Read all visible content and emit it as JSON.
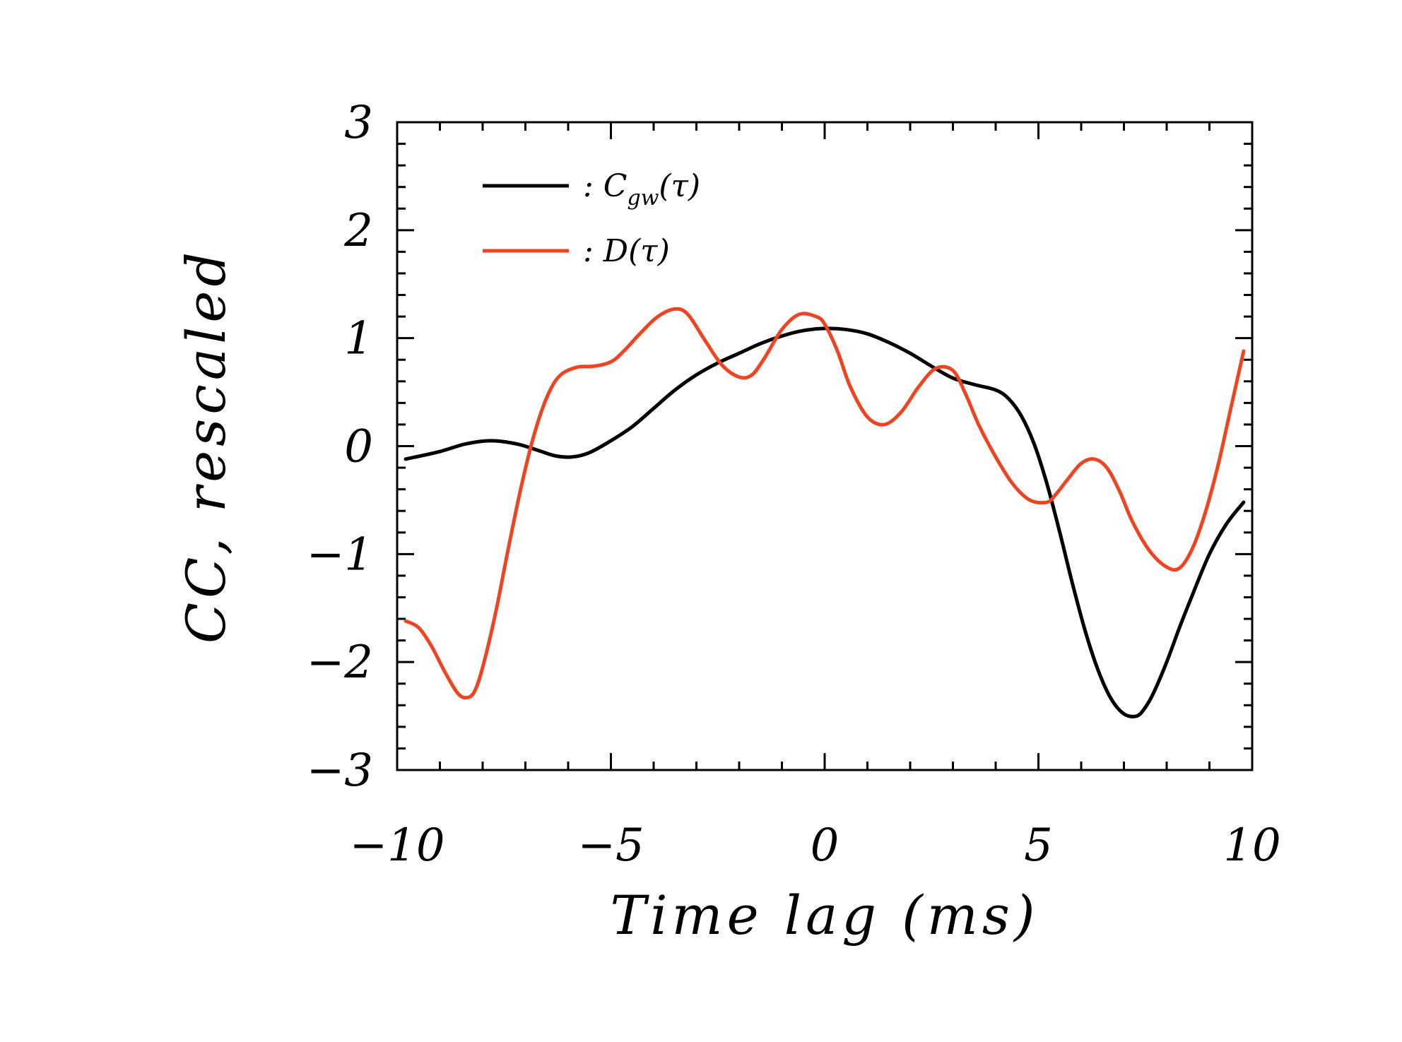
{
  "chart_data": {
    "type": "line",
    "title": "",
    "xlabel": "Time lag (ms)",
    "ylabel": "CC, rescaled",
    "xlim": [
      -10,
      10
    ],
    "ylim": [
      -3,
      3
    ],
    "x_ticks": [
      -10,
      -5,
      0,
      5,
      10
    ],
    "x_tick_labels": [
      "−10",
      "−5",
      "0",
      "5",
      "10"
    ],
    "y_ticks": [
      -3,
      -2,
      -1,
      0,
      1,
      2,
      3
    ],
    "y_tick_labels": [
      "−3",
      "−2",
      "−1",
      "0",
      "1",
      "2",
      "3"
    ],
    "x_minor_step": 1,
    "y_minor_step": 0.2,
    "legend": "top-left",
    "series": [
      {
        "name": "Cgw(τ)",
        "legend_label": ":  C",
        "legend_sub": "gw",
        "legend_tail": "(τ)",
        "color": "#000000",
        "x": [
          -9.8,
          -9.0,
          -8.4,
          -7.8,
          -7.2,
          -6.7,
          -6.3,
          -5.9,
          -5.5,
          -5.0,
          -4.5,
          -4.0,
          -3.5,
          -3.0,
          -2.5,
          -2.0,
          -1.5,
          -1.0,
          -0.5,
          0.0,
          0.5,
          1.0,
          1.5,
          2.0,
          2.5,
          3.0,
          3.5,
          4.0,
          4.3,
          4.6,
          4.9,
          5.2,
          5.5,
          5.8,
          6.1,
          6.4,
          6.7,
          7.0,
          7.3,
          7.5,
          7.7,
          8.0,
          8.3,
          8.6,
          9.0,
          9.4,
          9.8
        ],
        "y": [
          -0.12,
          -0.05,
          0.02,
          0.05,
          0.02,
          -0.04,
          -0.09,
          -0.1,
          -0.06,
          0.05,
          0.18,
          0.35,
          0.52,
          0.66,
          0.77,
          0.86,
          0.95,
          1.02,
          1.07,
          1.09,
          1.08,
          1.04,
          0.96,
          0.86,
          0.74,
          0.63,
          0.57,
          0.52,
          0.44,
          0.28,
          0.02,
          -0.35,
          -0.8,
          -1.28,
          -1.72,
          -2.08,
          -2.34,
          -2.48,
          -2.5,
          -2.42,
          -2.28,
          -2.0,
          -1.68,
          -1.38,
          -1.0,
          -0.72,
          -0.52
        ]
      },
      {
        "name": "D(τ)",
        "legend_label": ":  D(τ)",
        "color": "#ee4422",
        "x": [
          -9.8,
          -9.5,
          -9.2,
          -8.9,
          -8.6,
          -8.4,
          -8.2,
          -8.0,
          -7.7,
          -7.4,
          -7.1,
          -6.8,
          -6.5,
          -6.2,
          -5.8,
          -5.4,
          -5.0,
          -4.7,
          -4.3,
          -3.9,
          -3.5,
          -3.2,
          -2.8,
          -2.4,
          -2.0,
          -1.7,
          -1.4,
          -1.0,
          -0.6,
          -0.2,
          0.0,
          0.3,
          0.6,
          1.0,
          1.4,
          1.8,
          2.2,
          2.6,
          3.0,
          3.3,
          3.6,
          4.0,
          4.4,
          4.8,
          5.2,
          5.4,
          5.7,
          6.0,
          6.3,
          6.6,
          6.9,
          7.2,
          7.6,
          8.0,
          8.3,
          8.6,
          8.9,
          9.2,
          9.5,
          9.8
        ],
        "y": [
          -1.62,
          -1.68,
          -1.85,
          -2.08,
          -2.28,
          -2.33,
          -2.28,
          -2.05,
          -1.55,
          -0.95,
          -0.38,
          0.1,
          0.45,
          0.65,
          0.73,
          0.74,
          0.78,
          0.88,
          1.05,
          1.2,
          1.27,
          1.22,
          0.98,
          0.75,
          0.64,
          0.66,
          0.82,
          1.08,
          1.22,
          1.2,
          1.13,
          0.88,
          0.55,
          0.27,
          0.2,
          0.32,
          0.55,
          0.72,
          0.7,
          0.48,
          0.2,
          -0.1,
          -0.35,
          -0.5,
          -0.52,
          -0.45,
          -0.3,
          -0.16,
          -0.12,
          -0.2,
          -0.42,
          -0.7,
          -0.97,
          -1.12,
          -1.13,
          -0.95,
          -0.62,
          -0.18,
          0.35,
          0.88
        ]
      }
    ]
  }
}
